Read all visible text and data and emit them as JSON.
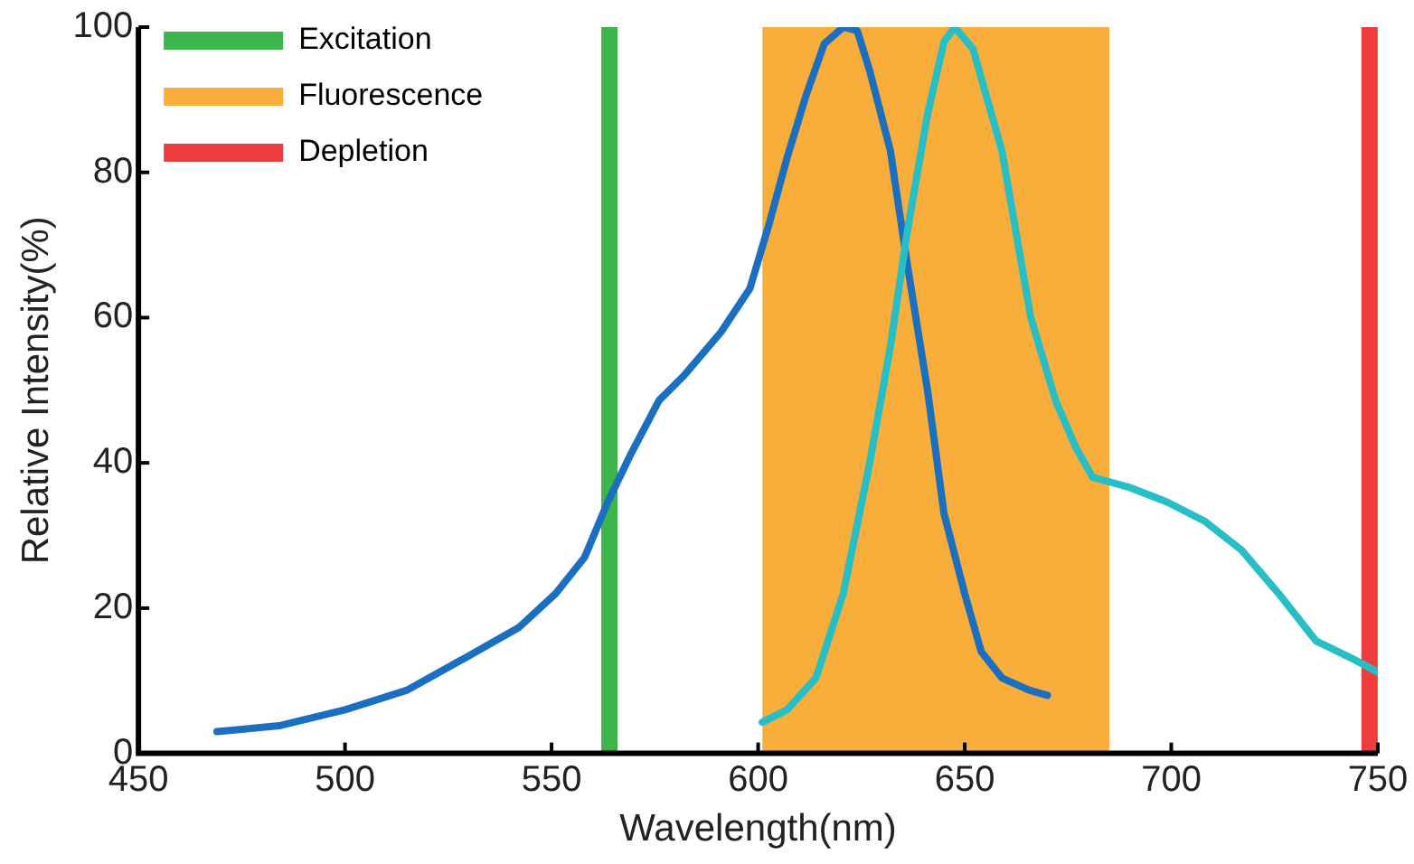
{
  "chart_data": {
    "type": "line",
    "xlabel": "Wavelength(nm)",
    "ylabel": "Relative Intensity(%)",
    "xlim": [
      450,
      750
    ],
    "xticks": [
      450,
      500,
      550,
      600,
      650,
      700,
      750
    ],
    "ylim": [
      0,
      100
    ],
    "yticks": [
      0,
      20,
      40,
      60,
      80,
      100
    ],
    "grid": false,
    "legend": "top left",
    "marker": "none",
    "line_style": "solid",
    "series": [
      {
        "name": "Excitation",
        "color": "#3cb54a",
        "x": [
          564,
          564
        ],
        "values": [
          0,
          100
        ]
      },
      {
        "name": "Fluorescence",
        "type": "area",
        "color": "#f9ad3b",
        "x": [
          601,
          685
        ],
        "values": [
          100,
          100
        ]
      },
      {
        "name": "Depletion",
        "color": "#ee3b3b",
        "x": [
          748,
          748
        ],
        "values": [
          0,
          100
        ]
      },
      {
        "color": "#1b6fc0",
        "x": [
          469,
          484,
          500,
          515,
          528.6,
          542,
          551,
          558,
          563.6,
          569,
          576,
          582,
          591,
          598,
          602.7,
          607,
          611.6,
          616,
          620.6,
          624,
          627,
          632,
          636,
          641,
          645,
          650,
          654,
          659,
          665.6,
          670
        ],
        "values": [
          3,
          3.8,
          6,
          8.7,
          13,
          17.3,
          22,
          27,
          34.6,
          41,
          48.6,
          52,
          58,
          64,
          73,
          82,
          90.6,
          97.7,
          100,
          99.5,
          94,
          83,
          67.7,
          50,
          33,
          22,
          14,
          10.4,
          8.7,
          8
        ]
      },
      {
        "color": "#27bec6",
        "x": [
          601,
          607,
          614,
          620.6,
          627,
          632,
          636,
          641,
          645,
          647.6,
          652,
          659,
          666,
          672,
          677,
          681,
          690,
          699,
          708,
          717,
          726,
          735,
          744,
          750
        ],
        "values": [
          4.3,
          6,
          10.4,
          22,
          40,
          56,
          71.5,
          88,
          98,
          100,
          97,
          83,
          60,
          48.6,
          42,
          38,
          36.6,
          34.6,
          32,
          28,
          22,
          15.5,
          13,
          11.2
        ]
      }
    ]
  }
}
